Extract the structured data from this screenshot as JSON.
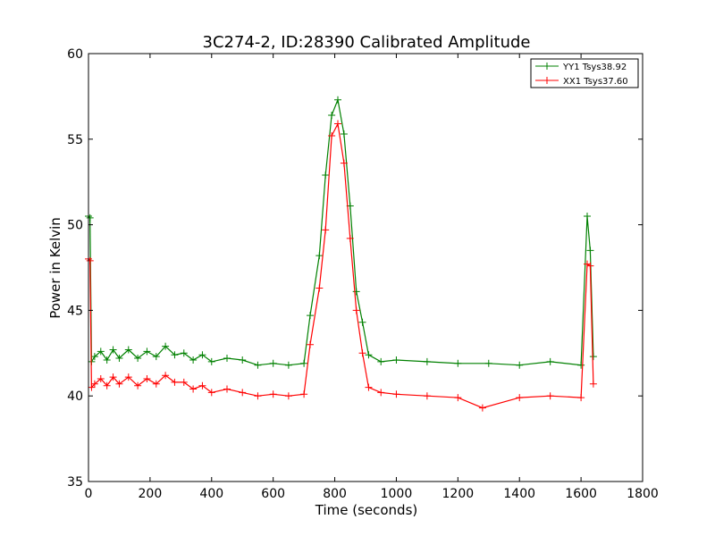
{
  "chart_data": {
    "type": "line",
    "title": "3C274-2, ID:28390 Calibrated Amplitude",
    "xlabel": "Time (seconds)",
    "ylabel": "Power in Kelvin",
    "xlim": [
      0,
      1800
    ],
    "ylim": [
      35,
      60
    ],
    "x_ticks": [
      0,
      200,
      400,
      600,
      800,
      1000,
      1200,
      1400,
      1600,
      1800
    ],
    "y_ticks": [
      35,
      40,
      45,
      50,
      55,
      60
    ],
    "grid": false,
    "legend_position": "top-right",
    "colors": {
      "YY1": "#008000",
      "XX1": "#ff0000"
    },
    "series": [
      {
        "name": "YY1 Tsys38.92",
        "color": "#008000",
        "x": [
          0,
          5,
          10,
          20,
          40,
          60,
          80,
          100,
          130,
          160,
          190,
          220,
          250,
          280,
          310,
          340,
          370,
          400,
          450,
          500,
          550,
          600,
          650,
          700,
          720,
          750,
          770,
          790,
          810,
          830,
          850,
          870,
          890,
          910,
          950,
          1000,
          1100,
          1200,
          1300,
          1400,
          1500,
          1600,
          1620,
          1630,
          1640
        ],
        "y": [
          50.5,
          50.4,
          42.0,
          42.3,
          42.6,
          42.1,
          42.7,
          42.2,
          42.7,
          42.2,
          42.6,
          42.3,
          42.9,
          42.4,
          42.5,
          42.1,
          42.4,
          42.0,
          42.2,
          42.1,
          41.8,
          41.9,
          41.8,
          41.9,
          44.7,
          48.2,
          52.9,
          56.4,
          57.3,
          55.3,
          51.1,
          46.1,
          44.3,
          42.4,
          42.0,
          42.1,
          42.0,
          41.9,
          41.9,
          41.8,
          42.0,
          41.8,
          50.5,
          48.5,
          42.3
        ]
      },
      {
        "name": "XX1 Tsys37.60",
        "color": "#ff0000",
        "x": [
          0,
          5,
          10,
          20,
          40,
          60,
          80,
          100,
          130,
          160,
          190,
          220,
          250,
          280,
          310,
          340,
          370,
          400,
          450,
          500,
          550,
          600,
          650,
          700,
          720,
          750,
          770,
          790,
          810,
          830,
          850,
          870,
          890,
          910,
          950,
          1000,
          1100,
          1200,
          1280,
          1400,
          1500,
          1600,
          1620,
          1630,
          1640
        ],
        "y": [
          48.0,
          47.9,
          40.5,
          40.7,
          41.0,
          40.6,
          41.1,
          40.7,
          41.1,
          40.6,
          41.0,
          40.7,
          41.2,
          40.8,
          40.8,
          40.4,
          40.6,
          40.2,
          40.4,
          40.2,
          40.0,
          40.1,
          40.0,
          40.1,
          43.0,
          46.3,
          49.7,
          55.2,
          55.9,
          53.6,
          49.2,
          45.0,
          42.5,
          40.5,
          40.2,
          40.1,
          40.0,
          39.9,
          39.3,
          39.9,
          40.0,
          39.9,
          47.7,
          47.6,
          40.7
        ]
      }
    ]
  }
}
